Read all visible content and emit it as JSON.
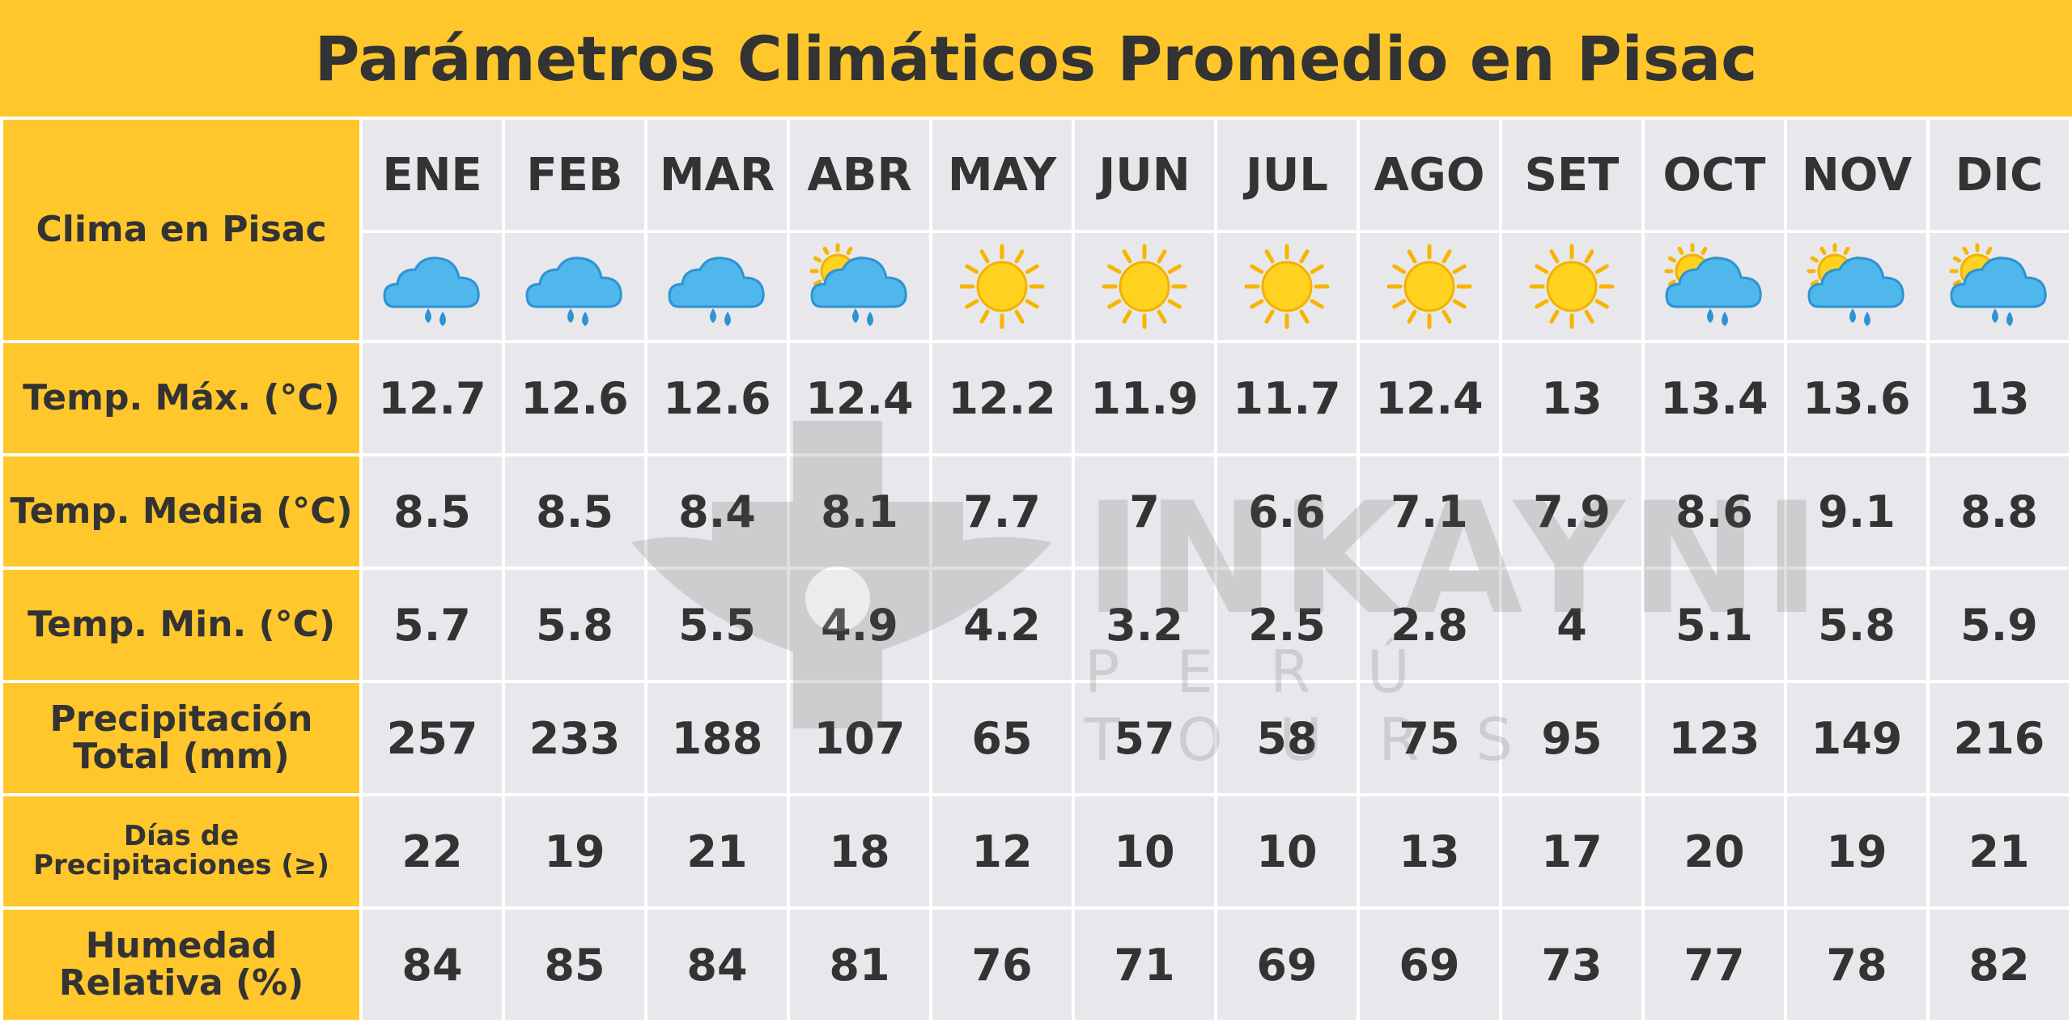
{
  "title": "Parámetros Climáticos Promedio en Pisac",
  "watermark": {
    "brand": "INKAYNI",
    "tagline": "PERÚ TOURS"
  },
  "colors": {
    "header": "#FFC72C",
    "cell": "#E8E8EC",
    "text": "#333333"
  },
  "chart_data": {
    "type": "table",
    "title": "Parámetros Climáticos Promedio en Pisac",
    "corner_label": "Clima en Pisac",
    "categories": [
      "ENE",
      "FEB",
      "MAR",
      "ABR",
      "MAY",
      "JUN",
      "JUL",
      "AGO",
      "SET",
      "OCT",
      "NOV",
      "DIC"
    ],
    "icons": [
      "rain-cloud-icon",
      "rain-cloud-icon",
      "rain-cloud-icon",
      "sun-rain-cloud-icon",
      "sun-icon",
      "sun-icon",
      "sun-icon",
      "sun-icon",
      "sun-icon",
      "sun-rain-cloud-icon",
      "sun-rain-cloud-icon",
      "sun-rain-cloud-icon"
    ],
    "rows": [
      {
        "label": "Temp. Máx. (°C)",
        "values": [
          "12.7",
          "12.6",
          "12.6",
          "12.4",
          "12.2",
          "11.9",
          "11.7",
          "12.4",
          "13",
          "13.4",
          "13.6",
          "13"
        ]
      },
      {
        "label": "Temp. Media (°C)",
        "values": [
          "8.5",
          "8.5",
          "8.4",
          "8.1",
          "7.7",
          "7",
          "6.6",
          "7.1",
          "7.9",
          "8.6",
          "9.1",
          "8.8"
        ]
      },
      {
        "label": "Temp. Min. (°C)",
        "values": [
          "5.7",
          "5.8",
          "5.5",
          "4.9",
          "4.2",
          "3.2",
          "2.5",
          "2.8",
          "4",
          "5.1",
          "5.8",
          "5.9"
        ]
      },
      {
        "label": "Precipitación Total (mm)",
        "values": [
          "257",
          "233",
          "188",
          "107",
          "65",
          "57",
          "58",
          "75",
          "95",
          "123",
          "149",
          "216"
        ]
      },
      {
        "label": "Días de Precipitaciones (≥)",
        "values": [
          "22",
          "19",
          "21",
          "18",
          "12",
          "10",
          "10",
          "13",
          "17",
          "20",
          "19",
          "21"
        ]
      },
      {
        "label": "Humedad Relativa (%)",
        "values": [
          "84",
          "85",
          "84",
          "81",
          "76",
          "71",
          "69",
          "69",
          "73",
          "77",
          "78",
          "82"
        ]
      }
    ]
  }
}
